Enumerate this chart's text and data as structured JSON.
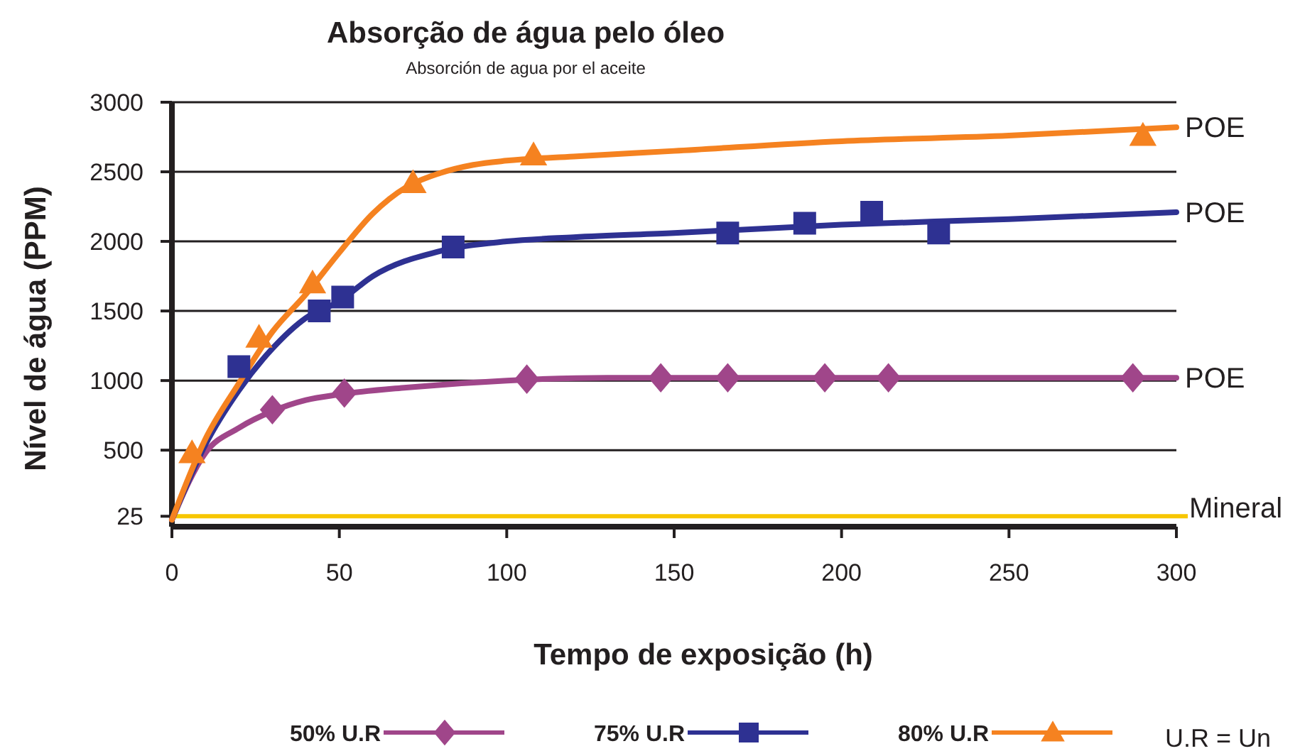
{
  "chart_data": {
    "type": "line",
    "title": "Absorção de água pelo óleo",
    "subtitle": "Absorción de agua por el aceite",
    "xlabel": "Tempo de exposição (h)",
    "ylabel": "Nível de água (PPM)",
    "xlim": [
      0,
      300
    ],
    "xticks": [
      0,
      50,
      100,
      150,
      200,
      250,
      300
    ],
    "ylim": [
      -50,
      3000
    ],
    "yticks": [
      25,
      500,
      1000,
      1500,
      2000,
      2500,
      3000
    ],
    "grid": "y",
    "legend": "bottom",
    "series": [
      {
        "name": "POE",
        "color": "#a0468a",
        "marker": "none",
        "x": [
          0,
          10,
          20,
          30,
          40,
          50,
          70,
          100,
          130,
          150,
          200,
          250,
          300
        ],
        "values": [
          0,
          480,
          660,
          780,
          860,
          900,
          950,
          1000,
          1020,
          1020,
          1020,
          1020,
          1020
        ]
      },
      {
        "name": "POE",
        "color": "#2e3192",
        "marker": "none",
        "x": [
          0,
          10,
          20,
          30,
          40,
          50,
          60,
          80,
          100,
          120,
          150,
          200,
          250,
          300
        ],
        "values": [
          0,
          540,
          930,
          1230,
          1450,
          1570,
          1750,
          1930,
          2000,
          2030,
          2060,
          2120,
          2160,
          2210
        ]
      },
      {
        "name": "POE",
        "color": "#f58220",
        "marker": "none",
        "x": [
          0,
          10,
          20,
          30,
          40,
          50,
          60,
          70,
          80,
          90,
          100,
          120,
          150,
          200,
          250,
          300
        ],
        "values": [
          0,
          580,
          980,
          1350,
          1620,
          1920,
          2200,
          2390,
          2490,
          2550,
          2580,
          2610,
          2650,
          2720,
          2760,
          2820
        ]
      },
      {
        "type": "scatter",
        "name": "50% U.R",
        "color": "#a0468a",
        "marker": "diamond",
        "x": [
          30,
          51.5,
          106,
          146,
          166,
          195,
          214,
          287
        ],
        "values": [
          790,
          910,
          1010,
          1020,
          1020,
          1020,
          1020,
          1020
        ]
      },
      {
        "type": "scatter",
        "name": "75% U.R",
        "color": "#2e3192",
        "marker": "square",
        "x": [
          20,
          44,
          51,
          84,
          166,
          189,
          209,
          229
        ],
        "values": [
          1100,
          1500,
          1600,
          1960,
          2060,
          2130,
          2210,
          2060
        ]
      },
      {
        "type": "scatter",
        "name": "80% U.R",
        "color": "#f58220",
        "marker": "triangle",
        "x": [
          6,
          26,
          42,
          72,
          108,
          290
        ],
        "values": [
          480,
          1310,
          1700,
          2420,
          2620,
          2760
        ]
      }
    ],
    "ref_lines": [
      {
        "axis": "y",
        "value": 25,
        "label": "Mineral",
        "color": "#f7c600"
      }
    ],
    "annotations": [
      "U.R = Un"
    ]
  }
}
